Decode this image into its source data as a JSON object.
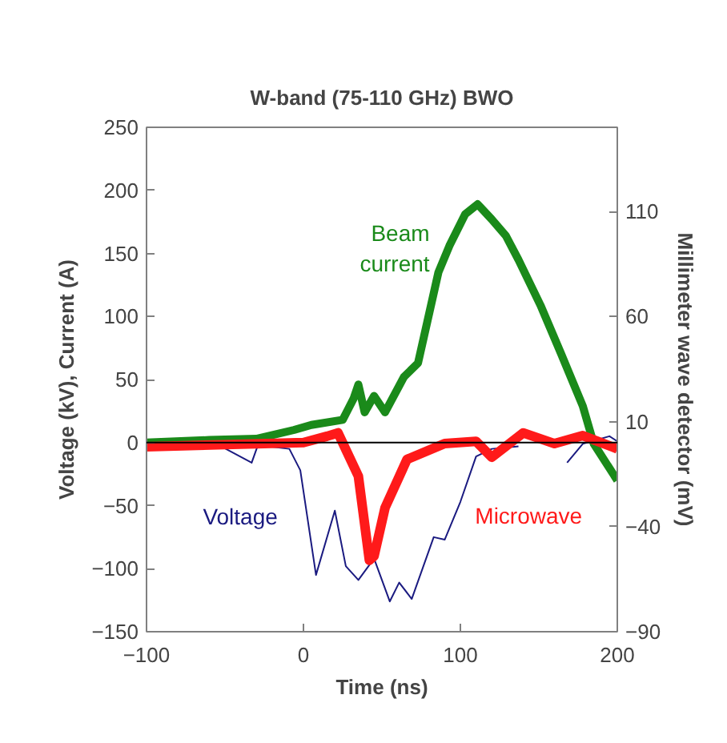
{
  "chart_data": {
    "type": "line",
    "title": "W-band (75-110 GHz) BWO",
    "xlabel": "Time (ns)",
    "ylabel": "Voltage (kV), Current (A)",
    "y2label": "Millimeter wave detector (mV)",
    "xlim": [
      -100,
      200
    ],
    "xticks": [
      -100,
      0,
      100,
      200
    ],
    "ylim": [
      -150,
      250
    ],
    "yticks": [
      -150,
      -100,
      -50,
      0,
      50,
      100,
      150,
      200,
      250
    ],
    "y2lim": [
      -90,
      150
    ],
    "y2ticks": [
      -90,
      -40,
      10,
      60,
      110
    ],
    "grid": false,
    "marker": "none",
    "line_style": "solid",
    "ref_lines": [
      {
        "axis": "y",
        "value": 0,
        "color": "#000000"
      }
    ],
    "series": [
      {
        "name": "Voltage",
        "color": "#1a1a80",
        "x": [
          -100,
          -60,
          -33,
          -29,
          -9,
          -2,
          8,
          20,
          27,
          35,
          45,
          55,
          61,
          69,
          83,
          90,
          100,
          110,
          120,
          137,
          158,
          168,
          178,
          195,
          200
        ],
        "values": [
          0,
          2,
          -16,
          -2,
          -5,
          -22,
          -105,
          -54,
          -98,
          -109,
          -92,
          -126,
          -111,
          -124,
          -75,
          -77,
          -47,
          -11,
          -5,
          -3,
          null,
          -16,
          -1,
          5,
          1
        ]
      },
      {
        "name": "Beam current",
        "color": "#1a8a1a",
        "x": [
          -100,
          -60,
          -30,
          -6,
          5,
          25,
          32,
          35,
          39,
          45,
          52,
          64,
          73,
          86,
          93,
          103,
          111,
          120,
          129,
          137,
          151,
          164,
          178,
          185,
          200
        ],
        "values": [
          0,
          2,
          3,
          10,
          14,
          18,
          35,
          46,
          24,
          37,
          24,
          52,
          63,
          135,
          156,
          181,
          189,
          177,
          164,
          145,
          109,
          71,
          29,
          -1,
          -30
        ]
      },
      {
        "name": "Microwave",
        "color": "#ff1a1a",
        "axis": "y2",
        "x": [
          -100,
          -50,
          0,
          15,
          22,
          35,
          42,
          45,
          52,
          66,
          90,
          110,
          120,
          140,
          160,
          178,
          200
        ],
        "values": [
          -2,
          -1,
          0,
          3,
          4.6,
          -16,
          -56,
          -54,
          -31,
          -8,
          -0.5,
          0.6,
          -7,
          4.6,
          -0.5,
          3.3,
          -3
        ]
      }
    ]
  }
}
